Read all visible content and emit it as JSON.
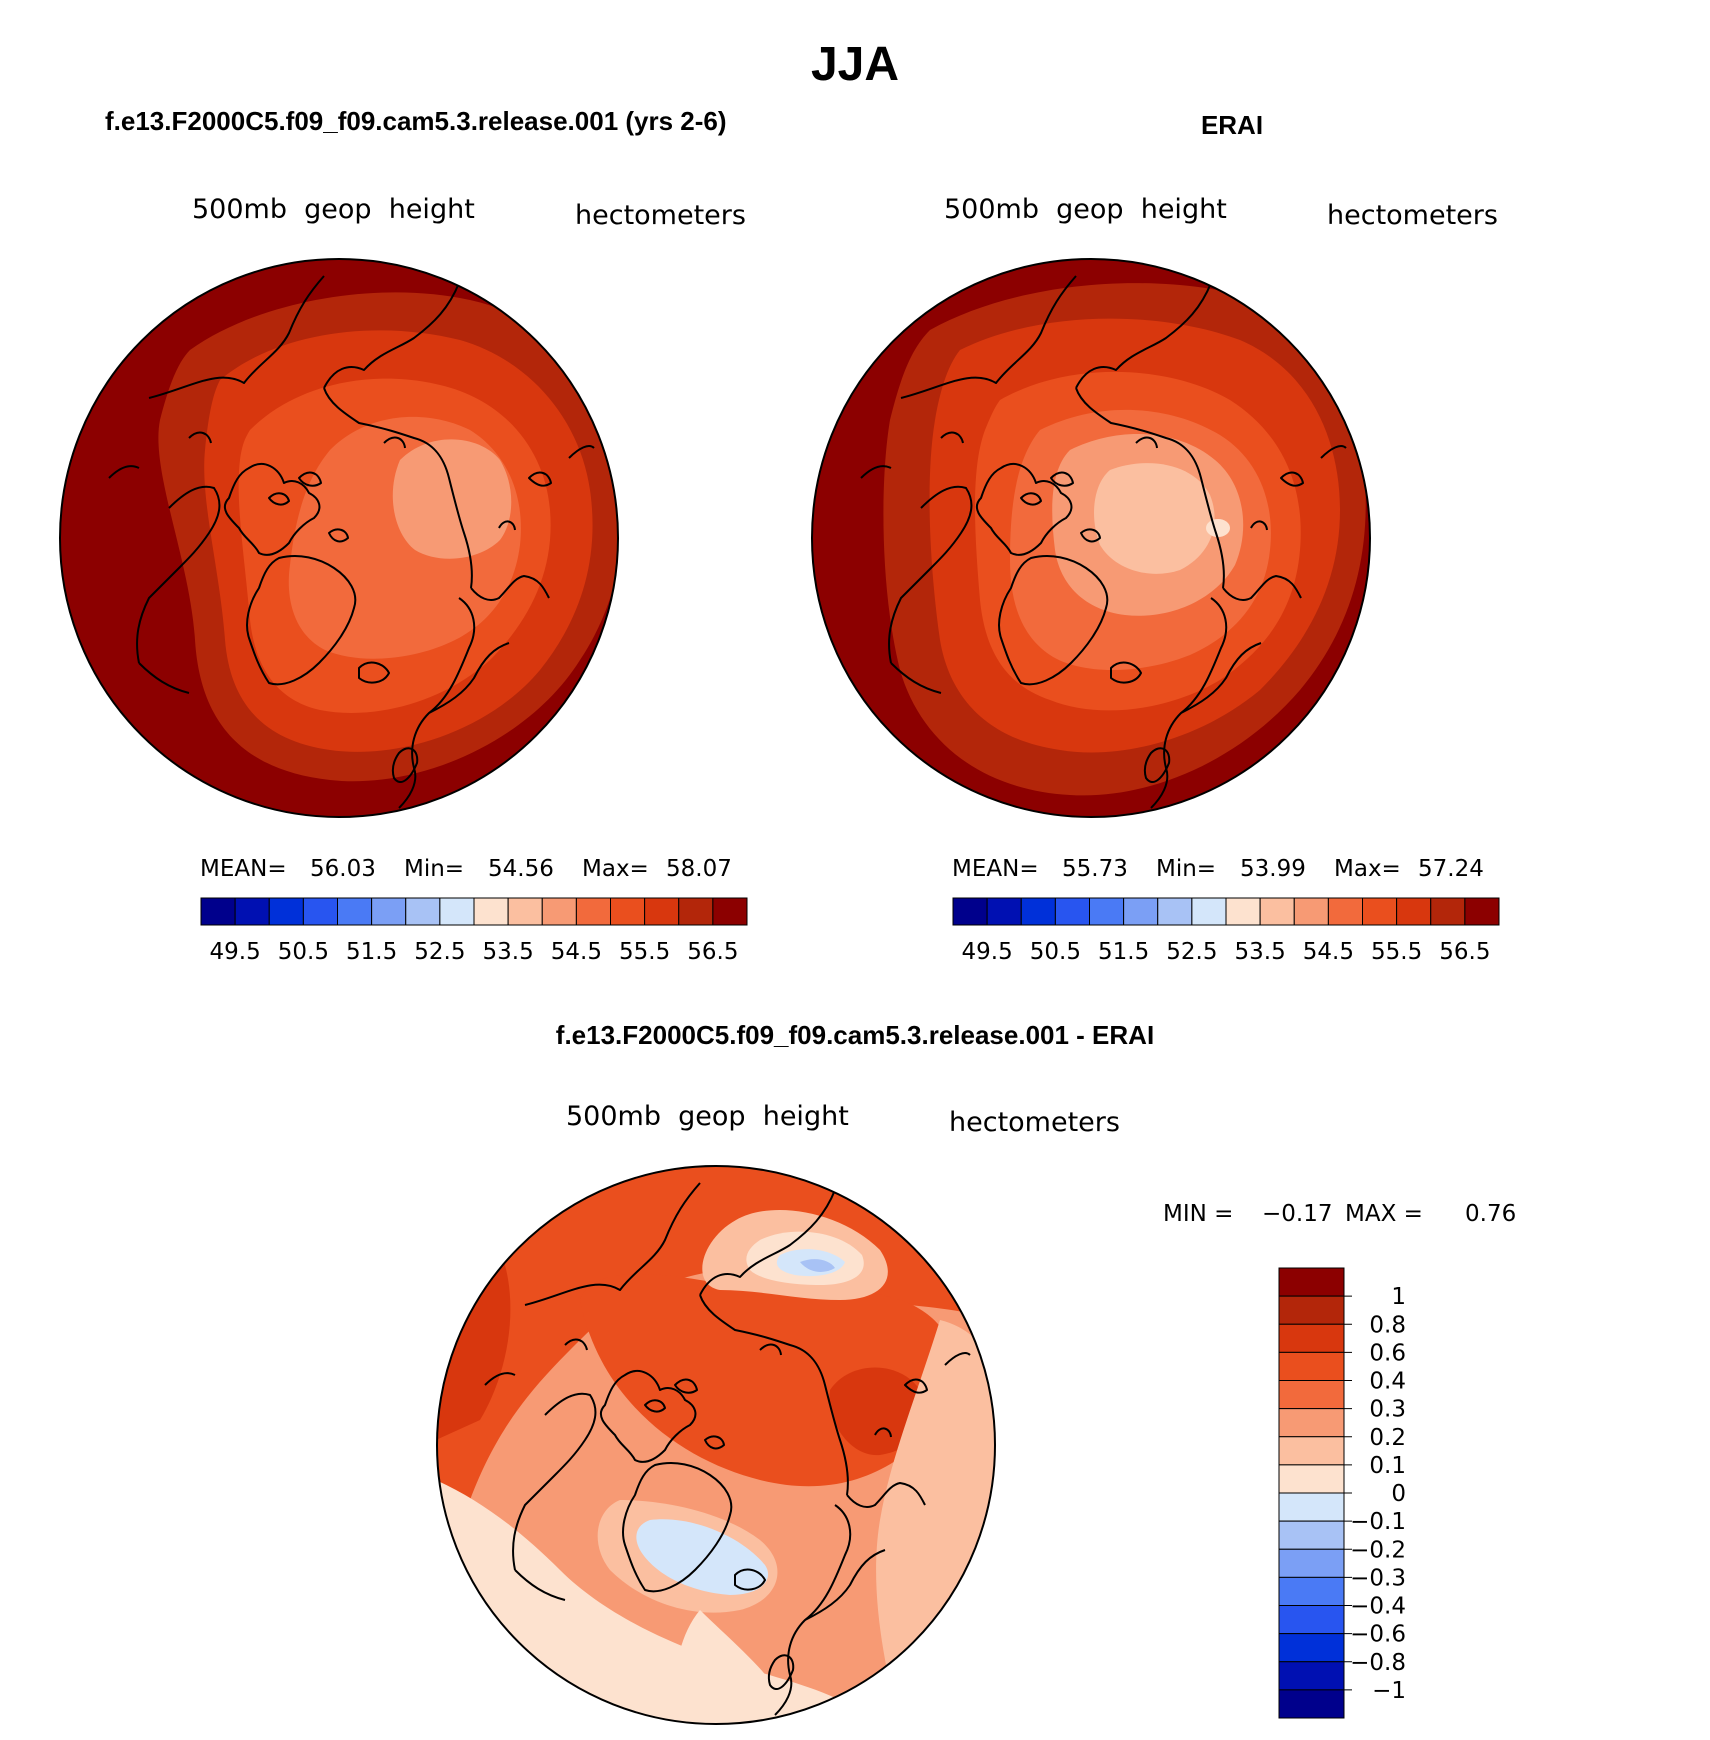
{
  "page": {
    "title": "JJA",
    "panel_left_title": "f.e13.F2000C5.f09_f09.cam5.3.release.001 (yrs 2-6)",
    "panel_right_title": "ERAI",
    "panel_diff_title": "f.e13.F2000C5.f09_f09.cam5.3.release.001 - ERAI"
  },
  "chart_data": [
    {
      "type": "heatmap",
      "projection": "polar-stereographic-north",
      "title": "f.e13.F2000C5.f09_f09.cam5.3.release.001 (yrs 2-6)",
      "variable": "500mb  geop  height",
      "units": "hectometers",
      "stats": {
        "mean_label": "MEAN=",
        "mean": "56.03",
        "min_label": "Min=",
        "min": "54.56",
        "max_label": "Max=",
        "max": "58.07"
      },
      "colorbar": {
        "orientation": "horizontal",
        "levels": [
          49.5,
          50,
          50.5,
          51,
          51.5,
          52,
          52.5,
          53,
          53.5,
          54,
          54.5,
          55,
          55.5,
          56,
          56.5
        ],
        "tick_labels": [
          "49.5",
          "50.5",
          "51.5",
          "52.5",
          "53.5",
          "54.5",
          "55.5",
          "56.5"
        ],
        "colors": [
          "#00008c",
          "#0010b2",
          "#0030d9",
          "#2855f0",
          "#4a7af5",
          "#7b9ff5",
          "#a8c2f5",
          "#d4e6fa",
          "#fde2cf",
          "#fbbfa0",
          "#f79a74",
          "#f26a3c",
          "#ea4f1e",
          "#d8370e",
          "#b3260a",
          "#8c0000"
        ]
      }
    },
    {
      "type": "heatmap",
      "projection": "polar-stereographic-north",
      "title": "ERAI",
      "variable": "500mb  geop  height",
      "units": "hectometers",
      "stats": {
        "mean_label": "MEAN=",
        "mean": "55.73",
        "min_label": "Min=",
        "min": "53.99",
        "max_label": "Max=",
        "max": "57.24"
      },
      "colorbar": {
        "orientation": "horizontal",
        "levels": [
          49.5,
          50,
          50.5,
          51,
          51.5,
          52,
          52.5,
          53,
          53.5,
          54,
          54.5,
          55,
          55.5,
          56,
          56.5
        ],
        "tick_labels": [
          "49.5",
          "50.5",
          "51.5",
          "52.5",
          "53.5",
          "54.5",
          "55.5",
          "56.5"
        ],
        "colors": [
          "#00008c",
          "#0010b2",
          "#0030d9",
          "#2855f0",
          "#4a7af5",
          "#7b9ff5",
          "#a8c2f5",
          "#d4e6fa",
          "#fde2cf",
          "#fbbfa0",
          "#f79a74",
          "#f26a3c",
          "#ea4f1e",
          "#d8370e",
          "#b3260a",
          "#8c0000"
        ]
      }
    },
    {
      "type": "heatmap",
      "projection": "polar-stereographic-north",
      "title": "f.e13.F2000C5.f09_f09.cam5.3.release.001 - ERAI",
      "variable": "500mb  geop  height",
      "units": "hectometers",
      "stats": {
        "min_label": "MIN =",
        "min": "−0.17",
        "max_label": "MAX =",
        "max": "0.76"
      },
      "colorbar": {
        "orientation": "vertical",
        "levels": [
          1,
          0.8,
          0.6,
          0.4,
          0.3,
          0.2,
          0.1,
          0,
          -0.1,
          -0.2,
          -0.3,
          -0.4,
          -0.6,
          -0.8,
          -1
        ],
        "tick_labels": [
          "1",
          "0.8",
          "0.6",
          "0.4",
          "0.3",
          "0.2",
          "0.1",
          "0",
          "−0.1",
          "−0.2",
          "−0.3",
          "−0.4",
          "−0.6",
          "−0.8",
          "−1"
        ],
        "colors": [
          "#8c0000",
          "#b3260a",
          "#d8370e",
          "#ea4f1e",
          "#f26a3c",
          "#f79a74",
          "#fbbfa0",
          "#fde2cf",
          "#d4e6fa",
          "#a8c2f5",
          "#7b9ff5",
          "#4a7af5",
          "#2855f0",
          "#0030d9",
          "#0010b2",
          "#00008c"
        ]
      }
    }
  ]
}
